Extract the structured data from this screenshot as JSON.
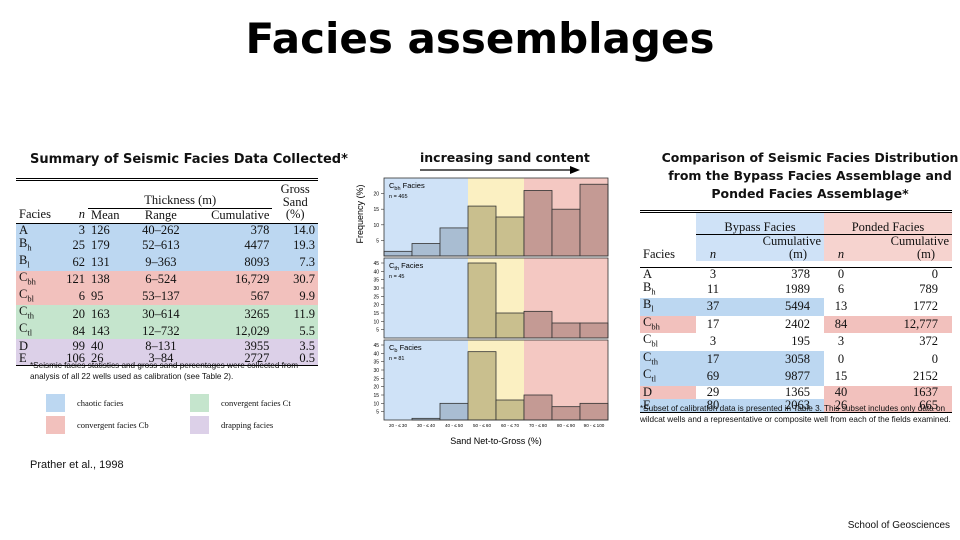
{
  "title": "Facies assemblages",
  "left_table": {
    "title": "Summary of Seismic Facies Data Collected*",
    "headers": {
      "facies": "Facies",
      "n": "n",
      "thickness_group": "Thickness (m)",
      "mean": "Mean",
      "range": "Range",
      "cumulative": "Cumulative",
      "gross_sand_1": "Gross",
      "gross_sand_2": "Sand",
      "gross_sand_3": "(%)"
    },
    "rows": [
      {
        "facies": "A",
        "n": "3",
        "mean": "126",
        "range": "40–262",
        "cumulative": "378",
        "sand": "14.0",
        "color": "#bcd7f1"
      },
      {
        "facies": "Bh",
        "n": "25",
        "mean": "179",
        "range": "52–613",
        "cumulative": "4477",
        "sand": "19.3",
        "color": "#bcd7f1"
      },
      {
        "facies": "Bl",
        "n": "62",
        "mean": "131",
        "range": "9–363",
        "cumulative": "8093",
        "sand": "7.3",
        "color": "#bcd7f1"
      },
      {
        "facies": "Cbh",
        "n": "121",
        "mean": "138",
        "range": "6–524",
        "cumulative": "16,729",
        "sand": "30.7",
        "color": "#f2c1bd"
      },
      {
        "facies": "Cbl",
        "n": "6",
        "mean": "95",
        "range": "53–137",
        "cumulative": "567",
        "sand": "9.9",
        "color": "#f2c1bd"
      },
      {
        "facies": "Cth",
        "n": "20",
        "mean": "163",
        "range": "30–614",
        "cumulative": "3265",
        "sand": "11.9",
        "color": "#c5e5cd"
      },
      {
        "facies": "Ctl",
        "n": "84",
        "mean": "143",
        "range": "12–732",
        "cumulative": "12,029",
        "sand": "5.5",
        "color": "#c5e5cd"
      },
      {
        "facies": "D",
        "n": "99",
        "mean": "40",
        "range": "8–131",
        "cumulative": "3955",
        "sand": "3.5",
        "color": "#dcd0e8"
      },
      {
        "facies": "E",
        "n": "106",
        "mean": "26",
        "range": "3–84",
        "cumulative": "2727",
        "sand": "0.5",
        "color": "#dcd0e8"
      }
    ],
    "note": "*Seismic facies statistics and gross sand percentages were collected from analysis of all 22 wells used as calibration (see Table 2).",
    "legend": [
      {
        "label": "chaotic facies",
        "color": "#bcd7f1"
      },
      {
        "label": "convergent facies Ct",
        "color": "#c5e5cd"
      },
      {
        "label": "convergent facies Cb",
        "color": "#f2c1bd"
      },
      {
        "label": "drapping facies",
        "color": "#dcd0e8"
      }
    ]
  },
  "citation": "Prather et al., 1998",
  "middle": {
    "heading": "increasing sand content"
  },
  "chart_data": {
    "type": "bar",
    "xlabel": "Sand Net-to-Gross (%)",
    "ylabel": "Frequency (%)",
    "categories": [
      "20 - ≤ 30",
      "30 - ≤ 40",
      "40 - ≤ 50",
      "50 - ≤ 60",
      "60 - ≤ 70",
      "70 - ≤ 80",
      "80 - ≤ 90",
      "90 - ≤ 100"
    ],
    "bands": [
      {
        "from": 0,
        "to": 3,
        "color": "#cfe2f7"
      },
      {
        "from": 3,
        "to": 5,
        "color": "#fbf0c2"
      },
      {
        "from": 5,
        "to": 8,
        "color": "#f4c8c2"
      }
    ],
    "bar_colors": [
      "#a9bdd2",
      "#a9bdd2",
      "#a9bdd2",
      "#c9bf8e",
      "#c9bf8e",
      "#c49a94",
      "#c49a94",
      "#c49a94"
    ],
    "panels": [
      {
        "label_main": "C",
        "label_sub": "bh",
        "label_rest": " Facies",
        "n_label": "n = 465",
        "ylim": [
          0,
          25
        ],
        "yticks": [
          "5",
          "10",
          "15",
          "20"
        ],
        "tick_values": [
          5,
          10,
          15,
          20
        ],
        "values": [
          1.5,
          4,
          9,
          16,
          12.5,
          21,
          15,
          23
        ]
      },
      {
        "label_main": "C",
        "label_sub": "th",
        "label_rest": " Facies",
        "n_label": "n = 45",
        "ylim": [
          0,
          48
        ],
        "yticks": [
          "5",
          "10",
          "15",
          "20",
          "25",
          "30",
          "35",
          "40",
          "45"
        ],
        "tick_values": [
          5,
          10,
          15,
          20,
          25,
          30,
          35,
          40,
          45
        ],
        "values": [
          0,
          0,
          0,
          45,
          15,
          16,
          9,
          9
        ]
      },
      {
        "label_main": "C",
        "label_sub": "b",
        "label_rest": " Facies",
        "n_label": "n = 81",
        "ylim": [
          0,
          48
        ],
        "yticks": [
          "5",
          "10",
          "15",
          "20",
          "25",
          "30",
          "35",
          "40",
          "45"
        ],
        "tick_values": [
          5,
          10,
          15,
          20,
          25,
          30,
          35,
          40,
          45
        ],
        "values": [
          0,
          1,
          10,
          41,
          12,
          15,
          8,
          10
        ]
      }
    ]
  },
  "right_table": {
    "title_lines": [
      "Comparison of Seismic Facies Distribution",
      "from the Bypass Facies Assemblage and",
      "Ponded Facies Assemblage*"
    ],
    "headers": {
      "facies": "Facies",
      "bypass": "Bypass Facies",
      "ponded": "Ponded Facies",
      "n": "n",
      "cumulative": "Cumulative",
      "m": "(m)"
    },
    "rows": [
      {
        "facies": "A",
        "bn": "3",
        "bc": "378",
        "pn": "0",
        "pc": "0",
        "bcolor": "#ffffff",
        "pcolor": "#ffffff"
      },
      {
        "facies": "Bh",
        "bn": "11",
        "bc": "1989",
        "pn": "6",
        "pc": "789",
        "bcolor": "#ffffff",
        "pcolor": "#ffffff"
      },
      {
        "facies": "Bl",
        "bn": "37",
        "bc": "5494",
        "pn": "13",
        "pc": "1772",
        "bcolor": "#bcd7f1",
        "pcolor": "#ffffff"
      },
      {
        "facies": "Cbh",
        "bn": "17",
        "bc": "2402",
        "pn": "84",
        "pc": "12,777",
        "bcolor": "#ffffff",
        "pcolor": "#f2c1bd"
      },
      {
        "facies": "Cbl",
        "bn": "3",
        "bc": "195",
        "pn": "3",
        "pc": "372",
        "bcolor": "#ffffff",
        "pcolor": "#ffffff"
      },
      {
        "facies": "Cth",
        "bn": "17",
        "bc": "3058",
        "pn": "0",
        "pc": "0",
        "bcolor": "#bcd7f1",
        "pcolor": "#ffffff"
      },
      {
        "facies": "Ctl",
        "bn": "69",
        "bc": "9877",
        "pn": "15",
        "pc": "2152",
        "bcolor": "#bcd7f1",
        "pcolor": "#ffffff"
      },
      {
        "facies": "D",
        "bn": "29",
        "bc": "1365",
        "pn": "40",
        "pc": "1637",
        "bcolor": "#ffffff",
        "pcolor": "#f2c1bd"
      },
      {
        "facies": "E",
        "bn": "80",
        "bc": "2063",
        "pn": "26",
        "pc": "665",
        "bcolor": "#bcd7f1",
        "pcolor": "#f2c1bd"
      }
    ],
    "note": "*Subset of calibration data is presented in Table 3. This subset includes only data on wildcat wells and a representative or composite well from each of the fields examined."
  },
  "footer": "School of Geosciences"
}
